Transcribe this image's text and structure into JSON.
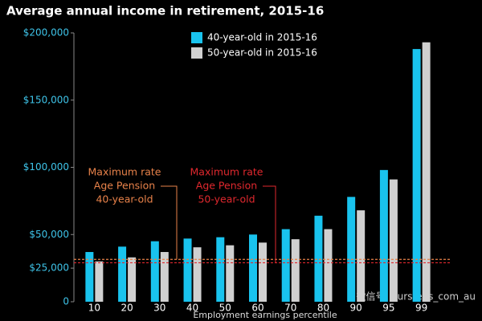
{
  "chart_data": {
    "type": "bar",
    "title": "Average annual income in retirement, 2015-16",
    "x_label": "Employment earnings percentile",
    "categories": [
      "10",
      "20",
      "30",
      "40",
      "50",
      "60",
      "70",
      "80",
      "90",
      "95",
      "99"
    ],
    "series": [
      {
        "name": "40-year-old in 2015-16",
        "color": "#19c3ee",
        "values": [
          37000,
          41000,
          45000,
          47000,
          48000,
          50000,
          54000,
          64000,
          78000,
          98000,
          188000
        ]
      },
      {
        "name": "50-year-old in 2015-16",
        "color": "#d0d0d0",
        "values": [
          30000,
          33000,
          37000,
          40500,
          42000,
          44000,
          46500,
          54000,
          68000,
          91000,
          193000
        ]
      }
    ],
    "ylim": [
      0,
      200000
    ],
    "yticks": [
      0,
      {
        "value": 25000,
        "label": "$25,000"
      },
      {
        "value": 50000,
        "label": "$50,000"
      },
      {
        "value": 100000,
        "label": "$100,000"
      },
      {
        "value": 150000,
        "label": "$150,000"
      },
      {
        "value": 200000,
        "label": "$200,000"
      }
    ],
    "annotations": [
      {
        "lines": [
          "Maximum rate",
          "Age Pension",
          "40-year-old"
        ],
        "value": 31500,
        "color": "#e8824a"
      },
      {
        "lines": [
          "Maximum rate",
          "Age Pension",
          "50-year-old"
        ],
        "value": 29000,
        "color": "#e0282e"
      }
    ],
    "legend": "top",
    "watermark": "微信号: oursteps_com_au"
  }
}
